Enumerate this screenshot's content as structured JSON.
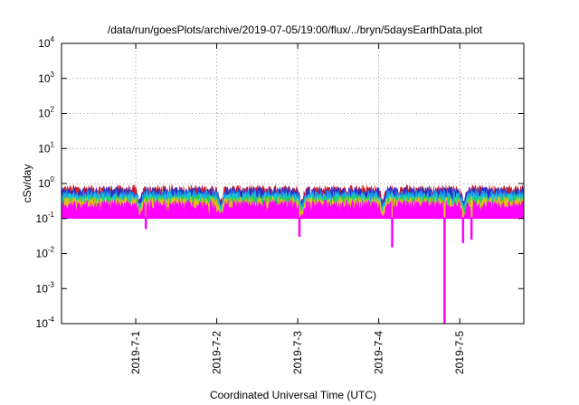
{
  "chart_data": {
    "type": "area",
    "title": "/data/run/goesPlots/archive/2019-07-05/19:00/flux/../bryn/5daysEarthData.plot",
    "xlabel": "Coordinated Universal Time (UTC)",
    "ylabel": "cSv/day",
    "yscale": "log",
    "ylim": [
      0.0001,
      10000
    ],
    "xlim": [
      "2019-06-30 02:00",
      "2019-07-05 19:00"
    ],
    "y_ticks": [
      {
        "base": "10",
        "exp": "-4",
        "value": 0.0001
      },
      {
        "base": "10",
        "exp": "-3",
        "value": 0.001
      },
      {
        "base": "10",
        "exp": "-2",
        "value": 0.01
      },
      {
        "base": "10",
        "exp": "-1",
        "value": 0.1
      },
      {
        "base": "10",
        "exp": "0",
        "value": 1
      },
      {
        "base": "10",
        "exp": "1",
        "value": 10
      },
      {
        "base": "10",
        "exp": "2",
        "value": 100
      },
      {
        "base": "10",
        "exp": "3",
        "value": 1000
      },
      {
        "base": "10",
        "exp": "4",
        "value": 10000
      }
    ],
    "x_ticks": [
      {
        "label": "2019-7-1",
        "value": "2019-07-01 00:00"
      },
      {
        "label": "2019-7-2",
        "value": "2019-07-02 00:00"
      },
      {
        "label": "2019-7-3",
        "value": "2019-07-03 00:00"
      },
      {
        "label": "2019-7-4",
        "value": "2019-07-04 00:00"
      },
      {
        "label": "2019-7-5",
        "value": "2019-07-05 00:00"
      }
    ],
    "grid": true,
    "series": [
      {
        "color": "#d0202a",
        "typical_value": 0.7
      },
      {
        "color": "#2f2fc8",
        "typical_value": 0.62
      },
      {
        "color": "#1a9be8",
        "typical_value": 0.5
      },
      {
        "color": "#20c8d8",
        "typical_value": 0.42
      },
      {
        "color": "#20d050",
        "typical_value": 0.36
      },
      {
        "color": "#e0c020",
        "typical_value": 0.32
      },
      {
        "color": "#ff00ff",
        "typical_value": 0.26
      }
    ],
    "dips": [
      {
        "time": "2019-07-01 03:00",
        "value": 0.05
      },
      {
        "time": "2019-07-03 00:30",
        "value": 0.03
      },
      {
        "time": "2019-07-04 04:00",
        "value": 0.015
      },
      {
        "time": "2019-07-04 19:30",
        "value": 0.0001
      },
      {
        "time": "2019-07-05 01:00",
        "value": 0.02
      },
      {
        "time": "2019-07-05 03:30",
        "value": 0.025
      }
    ]
  }
}
